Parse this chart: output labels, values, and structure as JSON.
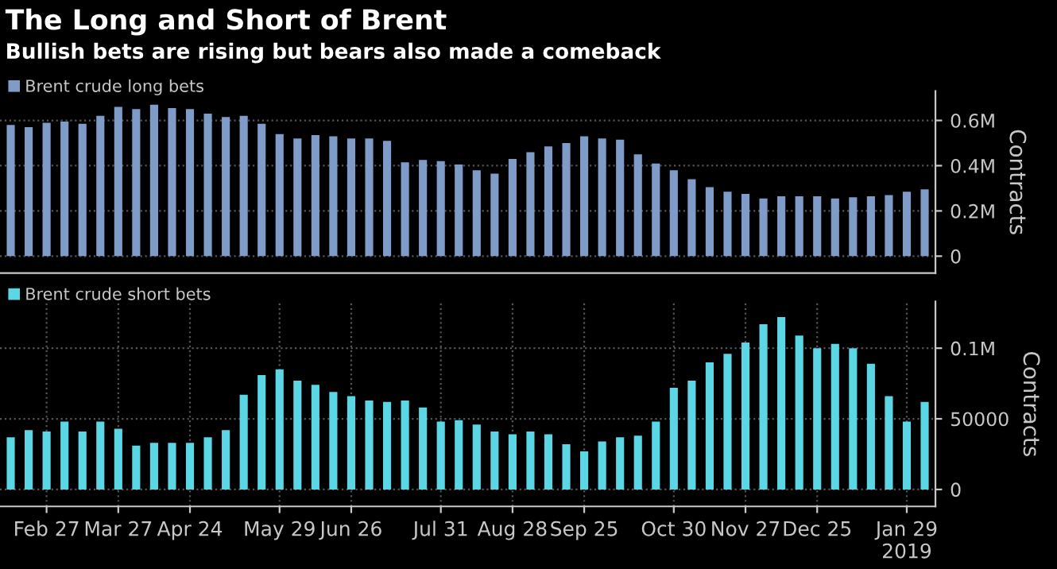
{
  "chart_data": [
    {
      "type": "bar",
      "title": "The Long and Short of Brent",
      "subtitle": "Bullish bets are rising but bears also made a comeback",
      "ylabel": "Contracts",
      "categories": [
        null,
        null,
        null,
        null,
        null,
        null,
        null,
        null,
        null,
        null,
        null,
        null,
        null,
        null,
        null,
        null,
        null,
        null,
        null,
        null,
        null,
        null,
        null,
        null,
        null,
        null,
        null,
        null,
        null,
        null,
        null,
        null,
        null,
        null,
        null,
        null,
        null,
        null,
        null,
        null,
        null,
        null,
        null,
        null,
        null,
        null,
        null,
        null,
        null,
        null,
        null,
        null
      ],
      "series": [
        {
          "name": "Brent crude long bets",
          "color": "#7f9cc8",
          "values": [
            580000,
            570000,
            590000,
            595000,
            585000,
            620000,
            660000,
            650000,
            670000,
            655000,
            650000,
            630000,
            615000,
            620000,
            585000,
            540000,
            520000,
            535000,
            530000,
            520000,
            520000,
            510000,
            415000,
            425000,
            420000,
            405000,
            380000,
            365000,
            430000,
            460000,
            485000,
            500000,
            530000,
            520000,
            515000,
            450000,
            410000,
            380000,
            340000,
            305000,
            285000,
            275000,
            255000,
            265000,
            265000,
            265000,
            255000,
            260000,
            265000,
            270000,
            285000,
            295000
          ]
        }
      ],
      "ylim": [
        -75000,
        730000
      ],
      "yticks": [
        0,
        {
          "value": 200000,
          "label": "0.2M"
        },
        {
          "value": 400000,
          "label": "0.4M"
        },
        {
          "value": 600000,
          "label": "0.6M"
        }
      ],
      "grid": "y",
      "legend": "top left",
      "tick_labels": "y"
    },
    {
      "type": "bar",
      "ylabel": "Contracts",
      "categories": [
        null,
        null,
        "Feb 27",
        null,
        null,
        null,
        "Mar 27",
        null,
        null,
        null,
        "Apr 24",
        null,
        null,
        null,
        null,
        "May 29",
        null,
        null,
        null,
        "Jun 26",
        null,
        null,
        null,
        null,
        "Jul 31",
        null,
        null,
        null,
        "Aug 28",
        null,
        null,
        null,
        "Sep 25",
        null,
        null,
        null,
        null,
        "Oct 30",
        null,
        null,
        null,
        "Nov 27",
        null,
        null,
        null,
        "Dec 25",
        null,
        null,
        null,
        null,
        "Jan 29\n2019",
        null
      ],
      "series": [
        {
          "name": "Brent crude short bets",
          "color": "#5ad6e4",
          "values": [
            37000,
            42000,
            41000,
            48000,
            41000,
            48000,
            43000,
            31000,
            33000,
            33000,
            33000,
            37000,
            42000,
            67000,
            81000,
            85000,
            77000,
            74000,
            69000,
            66000,
            63000,
            62000,
            63000,
            58000,
            48000,
            49000,
            46000,
            41000,
            39000,
            41000,
            39000,
            32000,
            27000,
            34000,
            37000,
            38000,
            48000,
            72000,
            77000,
            90000,
            96000,
            104000,
            117000,
            122000,
            109000,
            100000,
            103000,
            100000,
            89000,
            66000,
            48000,
            62000
          ]
        }
      ],
      "ylim": [
        -12000,
        133000
      ],
      "yticks": [
        0,
        50000,
        {
          "value": 100000,
          "label": "0.1M"
        }
      ],
      "grid": true,
      "legend": "top left"
    }
  ]
}
